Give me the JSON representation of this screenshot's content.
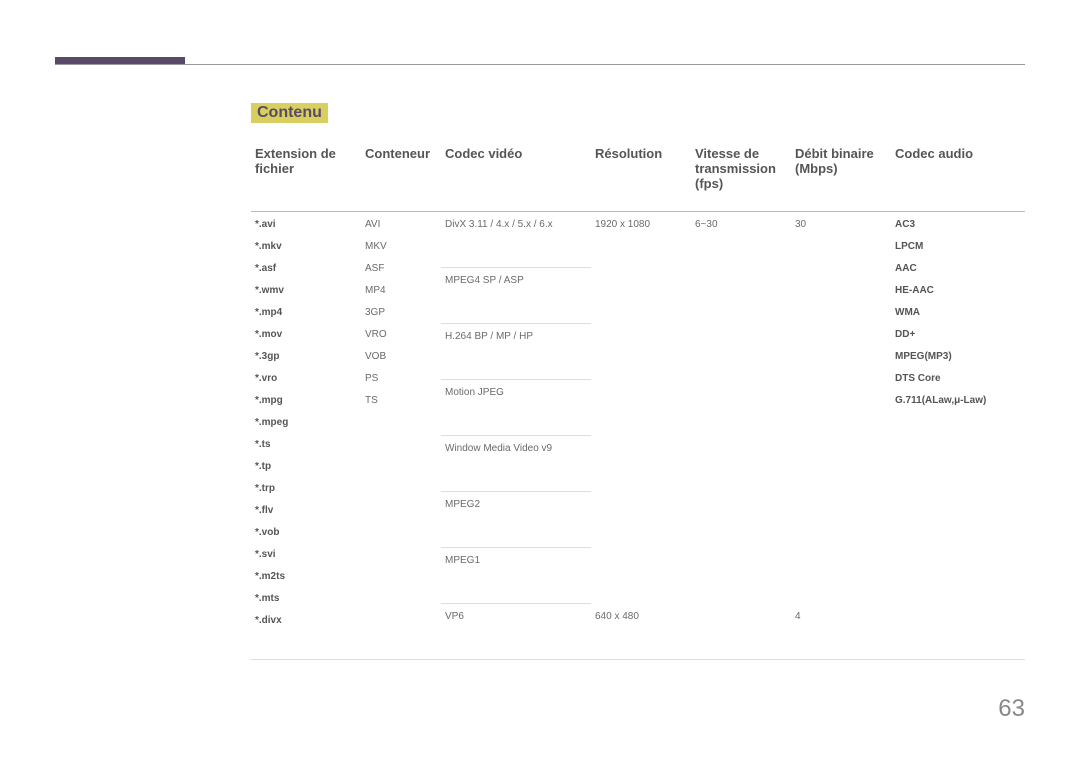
{
  "section_title": "Contenu",
  "page_number": "63",
  "headers": {
    "c1": "Extension de fichier",
    "c2": "Conteneur",
    "c3": "Codec vidéo",
    "c4": "Résolution",
    "c5": "Vitesse de transmission (fps)",
    "c6": "Débit binaire (Mbps)",
    "c7": "Codec audio"
  },
  "extensions": [
    "*.avi",
    "*.mkv",
    "*.asf",
    "*.wmv",
    "*.mp4",
    "*.mov",
    "*.3gp",
    "*.vro",
    "*.mpg",
    "*.mpeg",
    "*.ts",
    "*.tp",
    "*.trp",
    "*.flv",
    "*.vob",
    "*.svi",
    "*.m2ts",
    "*.mts",
    "*.divx"
  ],
  "containers": [
    "AVI",
    "MKV",
    "ASF",
    "MP4",
    "3GP",
    "VRO",
    "VOB",
    "PS",
    "TS"
  ],
  "audio_codecs": [
    "AC3",
    "LPCM",
    "AAC",
    "HE-AAC",
    "WMA",
    "DD+",
    "MPEG(MP3)",
    "DTS Core",
    "G.711(ALaw,μ-Law)"
  ],
  "rows": [
    {
      "codec": "DivX 3.11 / 4.x / 5.x / 6.x",
      "res": "1920 x 1080",
      "fps": "6~30",
      "mbps": "30"
    },
    {
      "codec": "MPEG4 SP / ASP",
      "res": "",
      "fps": "",
      "mbps": ""
    },
    {
      "codec": "H.264 BP / MP / HP",
      "res": "",
      "fps": "",
      "mbps": ""
    },
    {
      "codec": "Motion JPEG",
      "res": "",
      "fps": "",
      "mbps": ""
    },
    {
      "codec": "Window Media Video v9",
      "res": "",
      "fps": "",
      "mbps": ""
    },
    {
      "codec": "MPEG2",
      "res": "",
      "fps": "",
      "mbps": ""
    },
    {
      "codec": "MPEG1",
      "res": "",
      "fps": "",
      "mbps": ""
    },
    {
      "codec": "VP6",
      "res": "640 x 480",
      "fps": "",
      "mbps": "4"
    }
  ]
}
